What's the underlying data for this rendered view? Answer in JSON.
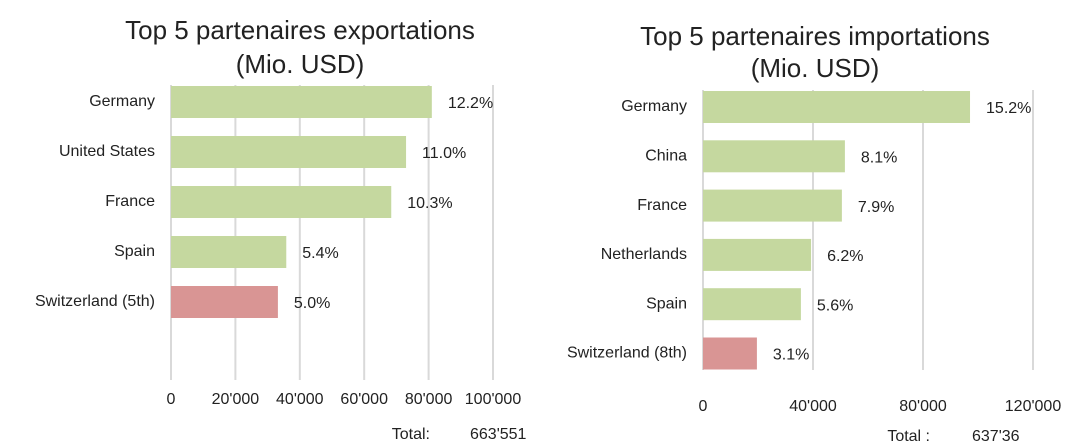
{
  "chart_data": [
    {
      "type": "bar",
      "title": "Top 5 partenaires exportations",
      "subtitle": "(Mio. USD)",
      "categories": [
        "Germany",
        "United States",
        "France",
        "Spain",
        "Switzerland (5th)"
      ],
      "values": [
        81000,
        73000,
        68400,
        35800,
        33200
      ],
      "labels": [
        "12.2%",
        "11.0%",
        "10.3%",
        "5.4%",
        "5.0%"
      ],
      "colors": [
        "#c5d89f",
        "#c5d89f",
        "#c5d89f",
        "#c5d89f",
        "#d99594"
      ],
      "xlim": [
        0,
        100000
      ],
      "xticks": [
        0,
        {
          "value": 20000,
          "label": "20'000"
        },
        {
          "value": 40000,
          "label": "40'000"
        },
        {
          "value": 60000,
          "label": "60'000"
        },
        {
          "value": 80000,
          "label": "80'000"
        },
        {
          "value": 100000,
          "label": "100'000"
        }
      ],
      "grid": true,
      "total_label": "Total:",
      "total_value": "663'551"
    },
    {
      "type": "bar",
      "title": "Top 5 partenaires importations",
      "subtitle": "(Mio. USD)",
      "categories": [
        "Germany",
        "China",
        "France",
        "Netherlands",
        "Spain",
        "Switzerland (8th)"
      ],
      "values": [
        97100,
        51600,
        50500,
        39300,
        35600,
        19600
      ],
      "labels": [
        "15.2%",
        "8.1%",
        "7.9%",
        "6.2%",
        "5.6%",
        "3.1%"
      ],
      "colors": [
        "#c5d89f",
        "#c5d89f",
        "#c5d89f",
        "#c5d89f",
        "#c5d89f",
        "#d99594"
      ],
      "xlim": [
        0,
        120000
      ],
      "xticks": [
        0,
        {
          "value": 40000,
          "label": "40'000"
        },
        {
          "value": 80000,
          "label": "80'000"
        },
        {
          "value": 120000,
          "label": "120'000"
        }
      ],
      "grid": true,
      "total_label": "Total :",
      "total_value": "637'36"
    }
  ]
}
